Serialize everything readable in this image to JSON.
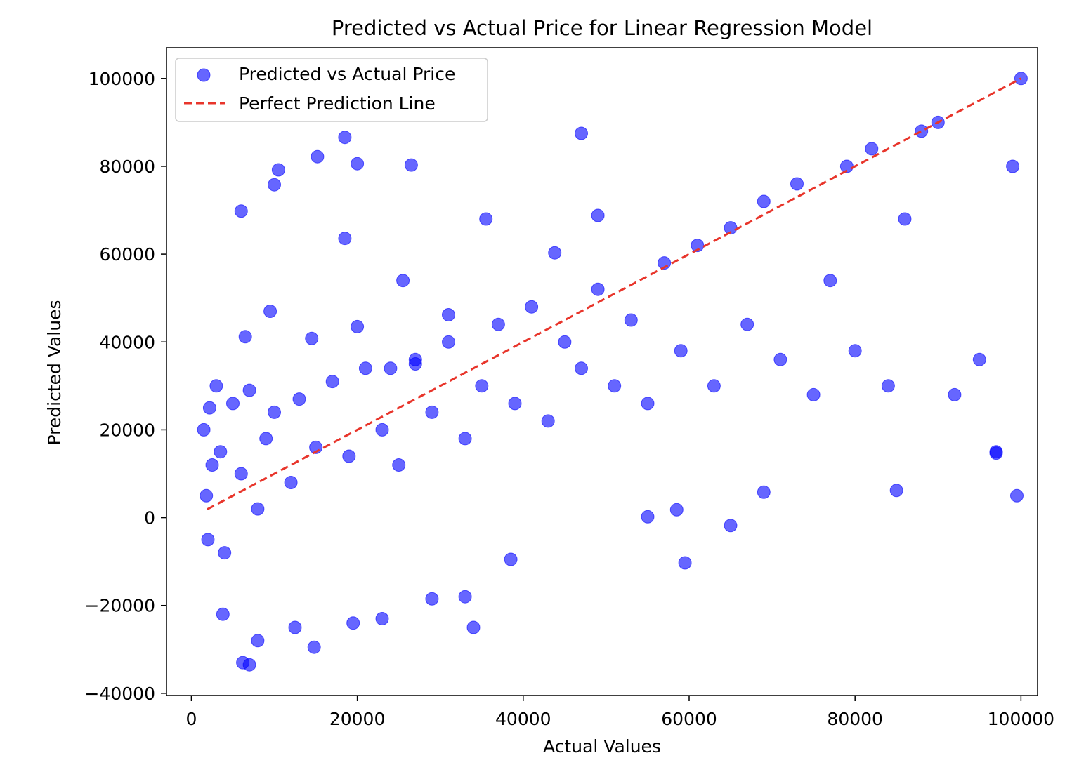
{
  "chart_data": {
    "type": "scatter",
    "title": "Predicted vs Actual Price for Linear Regression Model",
    "xlabel": "Actual Values",
    "ylabel": "Predicted Values",
    "xlim": [
      -3000,
      102000
    ],
    "ylim": [
      -40500,
      107000
    ],
    "xticks": [
      0,
      20000,
      40000,
      60000,
      80000,
      100000
    ],
    "xtick_labels": [
      "0",
      "20000",
      "40000",
      "60000",
      "80000",
      "100000"
    ],
    "yticks": [
      -40000,
      -20000,
      0,
      20000,
      40000,
      60000,
      80000,
      100000
    ],
    "ytick_labels": [
      "−40000",
      "−20000",
      "0",
      "20000",
      "40000",
      "60000",
      "80000",
      "100000"
    ],
    "grid": false,
    "legend_position": "top-left",
    "colors": {
      "points": "#0000ff",
      "line": "#e8352b"
    },
    "series": [
      {
        "name": "Predicted vs Actual Price",
        "kind": "scatter",
        "points": [
          [
            1500,
            20000
          ],
          [
            1800,
            5000
          ],
          [
            2000,
            -5000
          ],
          [
            2200,
            25000
          ],
          [
            2500,
            12000
          ],
          [
            3000,
            30000
          ],
          [
            3500,
            15000
          ],
          [
            4000,
            -8000
          ],
          [
            5000,
            26000
          ],
          [
            6000,
            10000
          ],
          [
            7000,
            29000
          ],
          [
            8000,
            2000
          ],
          [
            9000,
            18000
          ],
          [
            10000,
            24000
          ],
          [
            12000,
            8000
          ],
          [
            13000,
            27000
          ],
          [
            15000,
            16000
          ],
          [
            17000,
            31000
          ],
          [
            19000,
            14000
          ],
          [
            21000,
            34000
          ],
          [
            23000,
            20000
          ],
          [
            25000,
            12000
          ],
          [
            27000,
            36000
          ],
          [
            29000,
            24000
          ],
          [
            31000,
            40000
          ],
          [
            33000,
            18000
          ],
          [
            35000,
            30000
          ],
          [
            37000,
            44000
          ],
          [
            39000,
            26000
          ],
          [
            41000,
            48000
          ],
          [
            43000,
            22000
          ],
          [
            45000,
            40000
          ],
          [
            47000,
            34000
          ],
          [
            49000,
            52000
          ],
          [
            51000,
            30000
          ],
          [
            53000,
            45000
          ],
          [
            55000,
            26000
          ],
          [
            57000,
            58000
          ],
          [
            59000,
            38000
          ],
          [
            61000,
            62000
          ],
          [
            63000,
            30000
          ],
          [
            65000,
            66000
          ],
          [
            67000,
            44000
          ],
          [
            69000,
            72000
          ],
          [
            71000,
            36000
          ],
          [
            73000,
            76000
          ],
          [
            75000,
            28000
          ],
          [
            77000,
            54000
          ],
          [
            79000,
            80000
          ],
          [
            80000,
            38000
          ],
          [
            82000,
            84000
          ],
          [
            84000,
            30000
          ],
          [
            86000,
            68000
          ],
          [
            88000,
            88000
          ],
          [
            90000,
            90000
          ],
          [
            92000,
            28000
          ],
          [
            95000,
            36000
          ],
          [
            97000,
            15000
          ],
          [
            99000,
            80000
          ],
          [
            100000,
            100000
          ],
          [
            6000,
            69800
          ],
          [
            10000,
            75800
          ],
          [
            10500,
            79200
          ],
          [
            15200,
            82200
          ],
          [
            18500,
            86600
          ],
          [
            20000,
            80600
          ],
          [
            26500,
            80300
          ],
          [
            47000,
            87500
          ],
          [
            18500,
            63600
          ],
          [
            35500,
            68000
          ],
          [
            43800,
            60300
          ],
          [
            49000,
            68800
          ],
          [
            6500,
            41200
          ],
          [
            9500,
            47000
          ],
          [
            14500,
            40800
          ],
          [
            20000,
            43500
          ],
          [
            25500,
            54000
          ],
          [
            31000,
            46200
          ],
          [
            24000,
            34000
          ],
          [
            27000,
            35000
          ],
          [
            3800,
            -22000
          ],
          [
            6200,
            -33000
          ],
          [
            7000,
            -33500
          ],
          [
            8000,
            -28000
          ],
          [
            12500,
            -25000
          ],
          [
            14800,
            -29500
          ],
          [
            19500,
            -24000
          ],
          [
            23000,
            -23000
          ],
          [
            29000,
            -18500
          ],
          [
            33000,
            -18000
          ],
          [
            34000,
            -25000
          ],
          [
            38500,
            -9500
          ],
          [
            59500,
            -10300
          ],
          [
            65000,
            -1800
          ],
          [
            55000,
            200
          ],
          [
            58500,
            1800
          ],
          [
            69000,
            5800
          ],
          [
            85000,
            6200
          ],
          [
            99500,
            5000
          ],
          [
            97000,
            14700
          ]
        ]
      },
      {
        "name": "Perfect Prediction Line",
        "kind": "line",
        "style": "dashed",
        "points": [
          [
            1900,
            1900
          ],
          [
            100000,
            100000
          ]
        ]
      }
    ]
  }
}
